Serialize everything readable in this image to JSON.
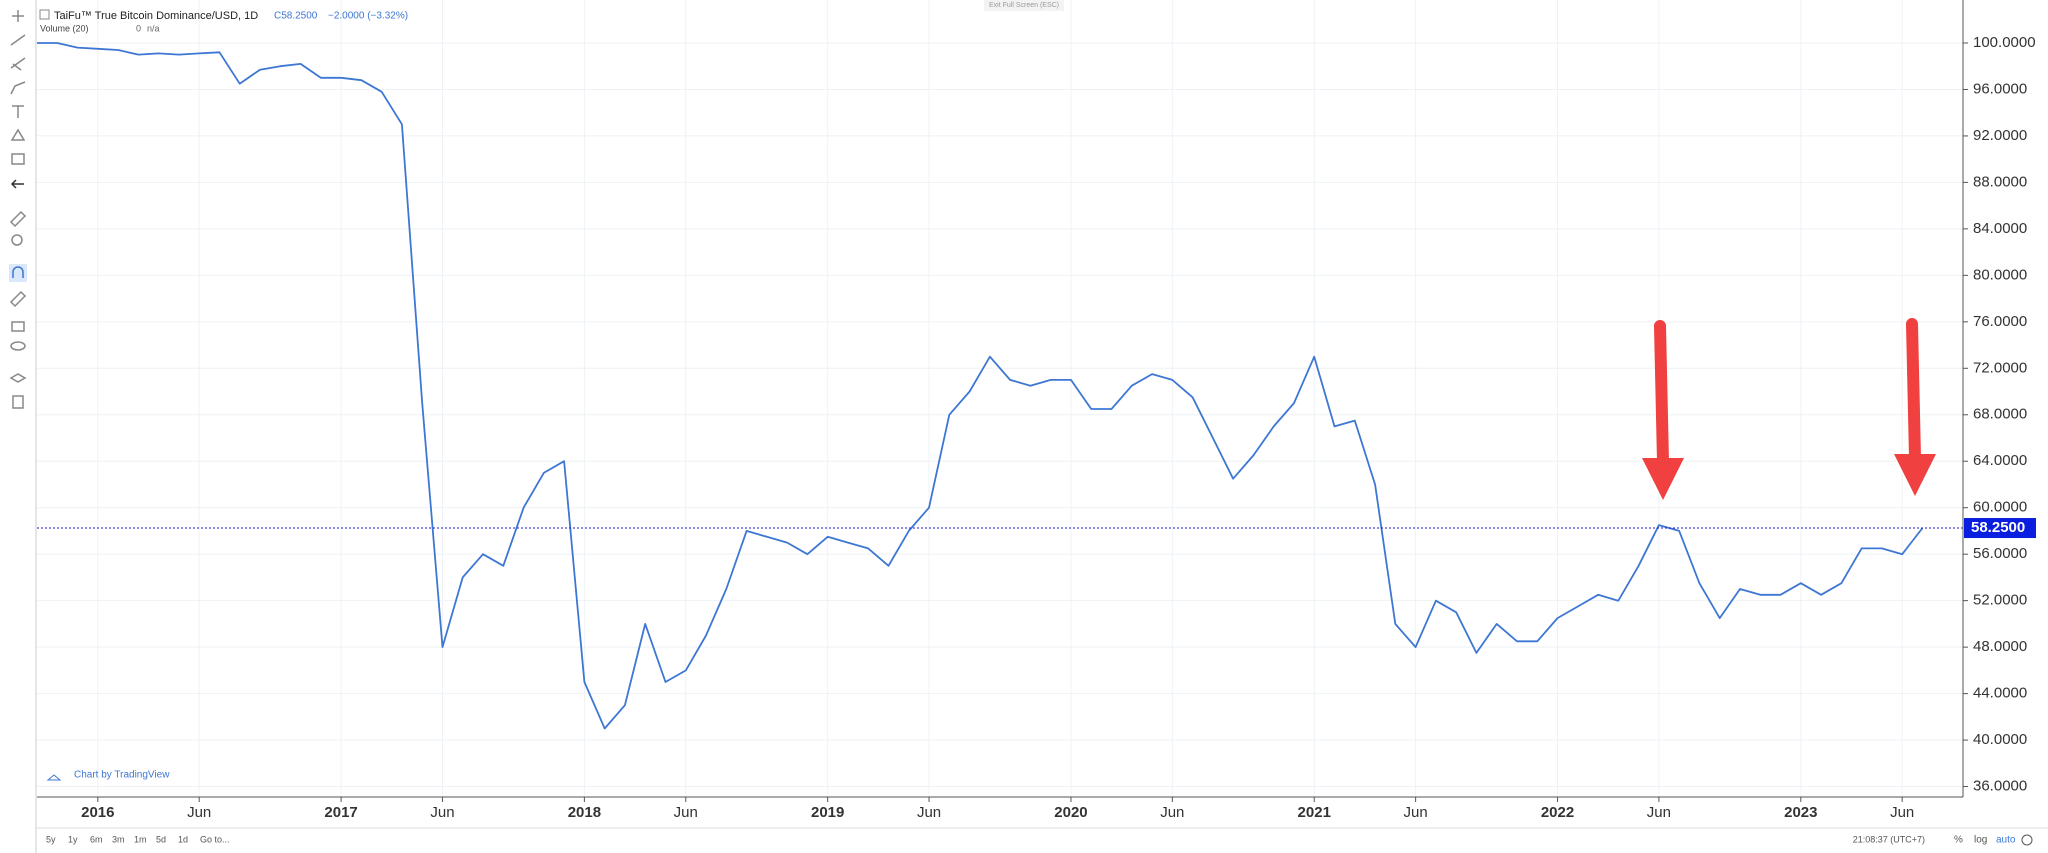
{
  "chart_data": {
    "type": "line",
    "title": "TaiFu™ True Bitcoin Dominance/USD, 1D",
    "close": "C58.2500",
    "change": "−2.0000 (−3.32%)",
    "volume_label": "Volume (20)",
    "volume_value": 0,
    "volume_na": "n/a",
    "watermark": "Chart by TradingView",
    "color": "#3d77d3",
    "x": [
      "2015-10",
      "2015-11",
      "2015-12",
      "2016-01",
      "2016-02",
      "2016-03",
      "2016-04",
      "2016-05",
      "2016-06",
      "2016-07",
      "2016-08",
      "2016-09",
      "2016-10",
      "2016-11",
      "2016-12",
      "2017-01",
      "2017-02",
      "2017-03",
      "2017-04",
      "2017-05",
      "2017-06",
      "2017-07",
      "2017-08",
      "2017-09",
      "2017-10",
      "2017-11",
      "2017-12",
      "2018-01",
      "2018-02",
      "2018-03",
      "2018-04",
      "2018-05",
      "2018-06",
      "2018-07",
      "2018-08",
      "2018-09",
      "2018-10",
      "2018-11",
      "2018-12",
      "2019-01",
      "2019-02",
      "2019-03",
      "2019-04",
      "2019-05",
      "2019-06",
      "2019-07",
      "2019-08",
      "2019-09",
      "2019-10",
      "2019-11",
      "2019-12",
      "2020-01",
      "2020-02",
      "2020-03",
      "2020-04",
      "2020-05",
      "2020-06",
      "2020-07",
      "2020-08",
      "2020-09",
      "2020-10",
      "2020-11",
      "2020-12",
      "2021-01",
      "2021-02",
      "2021-03",
      "2021-04",
      "2021-05",
      "2021-06",
      "2021-07",
      "2021-08",
      "2021-09",
      "2021-10",
      "2021-11",
      "2021-12",
      "2022-01",
      "2022-02",
      "2022-03",
      "2022-04",
      "2022-05",
      "2022-06",
      "2022-07",
      "2022-08",
      "2022-09",
      "2022-10",
      "2022-11",
      "2022-12",
      "2023-01",
      "2023-02",
      "2023-03",
      "2023-04",
      "2023-05",
      "2023-06",
      "2023-07"
    ],
    "values": [
      100,
      100,
      99.6,
      99.5,
      99.4,
      99.0,
      99.1,
      99.0,
      99.1,
      99.2,
      96.5,
      97.7,
      98.0,
      98.2,
      97.0,
      97.0,
      96.8,
      95.8,
      93.0,
      69,
      48,
      54,
      56,
      55,
      60,
      63,
      64,
      45,
      41,
      43,
      50,
      45,
      46,
      49,
      53,
      58,
      57.5,
      57,
      56,
      57.5,
      57,
      56.5,
      55,
      58,
      60,
      68,
      70,
      73,
      71,
      70.5,
      71,
      71,
      68.5,
      68.5,
      70.5,
      71.5,
      71,
      69.5,
      66,
      62.5,
      64.5,
      67,
      69,
      73,
      67,
      67.5,
      62,
      50,
      48,
      52,
      51,
      47.5,
      50,
      48.5,
      48.5,
      50.5,
      51.5,
      52.5,
      52,
      55,
      58.5,
      58,
      53.5,
      50.5,
      53,
      52.5,
      52.5,
      53.5,
      52.5,
      53.5,
      56.5,
      56.5,
      56,
      58.25
    ],
    "last": {
      "value": 58.25,
      "label": "58.2500"
    },
    "xlim": [
      "2015-10",
      "2023-09"
    ],
    "xticks": [
      {
        "value": "2016-01",
        "label": "2016"
      },
      {
        "value": "2016-06",
        "label": "Jun"
      },
      {
        "value": "2017-01",
        "label": "2017"
      },
      {
        "value": "2017-06",
        "label": "Jun"
      },
      {
        "value": "2018-01",
        "label": "2018"
      },
      {
        "value": "2018-06",
        "label": "Jun"
      },
      {
        "value": "2019-01",
        "label": "2019"
      },
      {
        "value": "2019-06",
        "label": "Jun"
      },
      {
        "value": "2020-01",
        "label": "2020"
      },
      {
        "value": "2020-06",
        "label": "Jun"
      },
      {
        "value": "2021-01",
        "label": "2021"
      },
      {
        "value": "2021-06",
        "label": "Jun"
      },
      {
        "value": "2022-01",
        "label": "2022"
      },
      {
        "value": "2022-06",
        "label": "Jun"
      },
      {
        "value": "2023-01",
        "label": "2023"
      },
      {
        "value": "2023-06",
        "label": "Jun"
      }
    ],
    "ylim": [
      35.1,
      103.7
    ],
    "yticks": [
      {
        "value": 36,
        "label": "36.0000"
      },
      {
        "value": 40,
        "label": "40.0000"
      },
      {
        "value": 44,
        "label": "44.0000"
      },
      {
        "value": 48,
        "label": "48.0000"
      },
      {
        "value": 52,
        "label": "52.0000"
      },
      {
        "value": 56,
        "label": "56.0000"
      },
      {
        "value": 60,
        "label": "60.0000"
      },
      {
        "value": 64,
        "label": "64.0000"
      },
      {
        "value": 68,
        "label": "68.0000"
      },
      {
        "value": 72,
        "label": "72.0000"
      },
      {
        "value": 76,
        "label": "76.0000"
      },
      {
        "value": 80,
        "label": "80.0000"
      },
      {
        "value": 84,
        "label": "84.0000"
      },
      {
        "value": 88,
        "label": "88.0000"
      },
      {
        "value": 92,
        "label": "92.0000"
      },
      {
        "value": 96,
        "label": "96.0000"
      },
      {
        "value": 100,
        "label": "100.0000"
      }
    ],
    "grid": true
  },
  "ui": {
    "exit": "Exit Full Screen (ESC)",
    "ranges": [
      "5y",
      "1y",
      "6m",
      "3m",
      "1m",
      "5d",
      "1d"
    ],
    "goto": "Go to...",
    "clock": "21:08:37 (UTC+7)",
    "scale_buttons": [
      "%",
      "log",
      "auto"
    ]
  }
}
